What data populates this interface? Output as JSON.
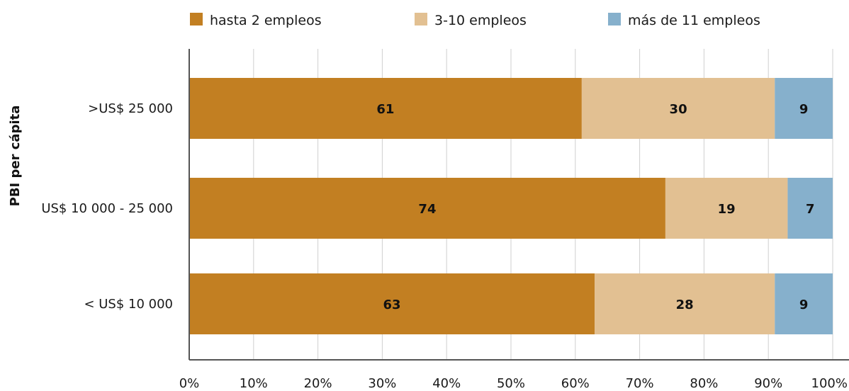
{
  "chart_data": {
    "type": "bar",
    "orientation": "horizontal",
    "stacked": true,
    "categories": [
      ">US$ 25 000",
      "US$ 10 000 - 25 000",
      "< US$ 10 000"
    ],
    "series": [
      {
        "name": "hasta 2 empleos",
        "values": [
          61,
          74,
          63
        ],
        "color": "#c27f22"
      },
      {
        "name": "3-10 empleos",
        "values": [
          30,
          19,
          28
        ],
        "color": "#e2c092"
      },
      {
        "name": "más de 11 empleos",
        "values": [
          9,
          7,
          9
        ],
        "color": "#86b0cc"
      }
    ],
    "xticks": [
      "0%",
      "10%",
      "20%",
      "30%",
      "40%",
      "50%",
      "60%",
      "70%",
      "80%",
      "90%",
      "100%"
    ],
    "xlim": [
      0,
      100
    ],
    "ylabel": "PBI per cápita",
    "xlabel": "",
    "grid": true,
    "legend_position": "top"
  }
}
